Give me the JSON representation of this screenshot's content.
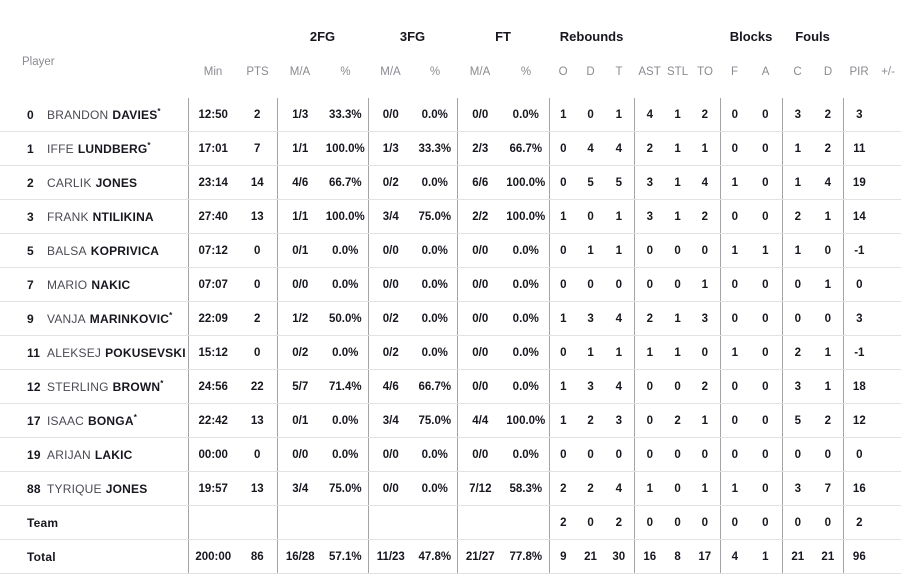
{
  "colors": {
    "text_dark": "#17171f",
    "text_gray": "#8a8a91",
    "first_name": "#4a4a53",
    "row_line": "#e2e2e4",
    "divider": "#a3a3a8",
    "background": "#ffffff"
  },
  "table": {
    "groups": [
      {
        "label": "",
        "span": 1
      },
      {
        "label": "",
        "span": 2
      },
      {
        "label": "2FG",
        "span": 2
      },
      {
        "label": "3FG",
        "span": 2
      },
      {
        "label": "FT",
        "span": 2
      },
      {
        "label": "Rebounds",
        "span": 3
      },
      {
        "label": "",
        "span": 3
      },
      {
        "label": "Blocks",
        "span": 2
      },
      {
        "label": "Fouls",
        "span": 2
      },
      {
        "label": "",
        "span": 2
      }
    ],
    "columns": [
      "Player",
      "Min",
      "PTS",
      "M/A",
      "%",
      "M/A",
      "%",
      "M/A",
      "%",
      "O",
      "D",
      "T",
      "AST",
      "STL",
      "TO",
      "F",
      "A",
      "C",
      "D",
      "PIR",
      "+/-"
    ],
    "stat_keys": [
      "min",
      "pts",
      "2fg-ma",
      "2fg-pct",
      "3fg-ma",
      "3fg-pct",
      "ft-ma",
      "ft-pct",
      "reb-o",
      "reb-d",
      "reb-t",
      "ast",
      "stl",
      "to",
      "blk-f",
      "blk-a",
      "foul-c",
      "foul-d",
      "pir",
      "plus-minus"
    ],
    "players": [
      {
        "number": "0",
        "first": "BRANDON",
        "last": "DAVIES",
        "starter": true,
        "stats": [
          "12:50",
          "2",
          "1/3",
          "33.3%",
          "0/0",
          "0.0%",
          "0/0",
          "0.0%",
          "1",
          "0",
          "1",
          "4",
          "1",
          "2",
          "0",
          "0",
          "3",
          "2",
          "3",
          ""
        ]
      },
      {
        "number": "1",
        "first": "IFFE",
        "last": "LUNDBERG",
        "starter": true,
        "stats": [
          "17:01",
          "7",
          "1/1",
          "100.0%",
          "1/3",
          "33.3%",
          "2/3",
          "66.7%",
          "0",
          "4",
          "4",
          "2",
          "1",
          "1",
          "0",
          "0",
          "1",
          "2",
          "11",
          ""
        ]
      },
      {
        "number": "2",
        "first": "CARLIK",
        "last": "JONES",
        "starter": false,
        "stats": [
          "23:14",
          "14",
          "4/6",
          "66.7%",
          "0/2",
          "0.0%",
          "6/6",
          "100.0%",
          "0",
          "5",
          "5",
          "3",
          "1",
          "4",
          "1",
          "0",
          "1",
          "4",
          "19",
          ""
        ]
      },
      {
        "number": "3",
        "first": "FRANK",
        "last": "NTILIKINA",
        "starter": false,
        "stats": [
          "27:40",
          "13",
          "1/1",
          "100.0%",
          "3/4",
          "75.0%",
          "2/2",
          "100.0%",
          "1",
          "0",
          "1",
          "3",
          "1",
          "2",
          "0",
          "0",
          "2",
          "1",
          "14",
          ""
        ]
      },
      {
        "number": "5",
        "first": "BALSA",
        "last": "KOPRIVICA",
        "starter": false,
        "stats": [
          "07:12",
          "0",
          "0/1",
          "0.0%",
          "0/0",
          "0.0%",
          "0/0",
          "0.0%",
          "0",
          "1",
          "1",
          "0",
          "0",
          "0",
          "1",
          "1",
          "1",
          "0",
          "-1",
          ""
        ]
      },
      {
        "number": "7",
        "first": "MARIO",
        "last": "NAKIC",
        "starter": false,
        "stats": [
          "07:07",
          "0",
          "0/0",
          "0.0%",
          "0/0",
          "0.0%",
          "0/0",
          "0.0%",
          "0",
          "0",
          "0",
          "0",
          "0",
          "1",
          "0",
          "0",
          "0",
          "1",
          "0",
          ""
        ]
      },
      {
        "number": "9",
        "first": "VANJA",
        "last": "MARINKOVIC",
        "starter": true,
        "stats": [
          "22:09",
          "2",
          "1/2",
          "50.0%",
          "0/2",
          "0.0%",
          "0/0",
          "0.0%",
          "1",
          "3",
          "4",
          "2",
          "1",
          "3",
          "0",
          "0",
          "0",
          "0",
          "3",
          ""
        ]
      },
      {
        "number": "11",
        "first": "ALEKSEJ",
        "last": "POKUSEVSKI",
        "starter": false,
        "stats": [
          "15:12",
          "0",
          "0/2",
          "0.0%",
          "0/2",
          "0.0%",
          "0/0",
          "0.0%",
          "0",
          "1",
          "1",
          "1",
          "1",
          "0",
          "1",
          "0",
          "2",
          "1",
          "-1",
          ""
        ]
      },
      {
        "number": "12",
        "first": "STERLING",
        "last": "BROWN",
        "starter": true,
        "stats": [
          "24:56",
          "22",
          "5/7",
          "71.4%",
          "4/6",
          "66.7%",
          "0/0",
          "0.0%",
          "1",
          "3",
          "4",
          "0",
          "0",
          "2",
          "0",
          "0",
          "3",
          "1",
          "18",
          ""
        ]
      },
      {
        "number": "17",
        "first": "ISAAC",
        "last": "BONGA",
        "starter": true,
        "stats": [
          "22:42",
          "13",
          "0/1",
          "0.0%",
          "3/4",
          "75.0%",
          "4/4",
          "100.0%",
          "1",
          "2",
          "3",
          "0",
          "2",
          "1",
          "0",
          "0",
          "5",
          "2",
          "12",
          ""
        ]
      },
      {
        "number": "19",
        "first": "ARIJAN",
        "last": "LAKIC",
        "starter": false,
        "stats": [
          "00:00",
          "0",
          "0/0",
          "0.0%",
          "0/0",
          "0.0%",
          "0/0",
          "0.0%",
          "0",
          "0",
          "0",
          "0",
          "0",
          "0",
          "0",
          "0",
          "0",
          "0",
          "0",
          ""
        ]
      },
      {
        "number": "88",
        "first": "TYRIQUE",
        "last": "JONES",
        "starter": false,
        "stats": [
          "19:57",
          "13",
          "3/4",
          "75.0%",
          "0/0",
          "0.0%",
          "7/12",
          "58.3%",
          "2",
          "2",
          "4",
          "1",
          "0",
          "1",
          "1",
          "0",
          "3",
          "7",
          "16",
          ""
        ]
      }
    ],
    "totals": [
      {
        "label": "Team",
        "stats": [
          "",
          "",
          "",
          "",
          "",
          "",
          "",
          "",
          "2",
          "0",
          "2",
          "0",
          "0",
          "0",
          "0",
          "0",
          "0",
          "0",
          "2",
          ""
        ]
      },
      {
        "label": "Total",
        "stats": [
          "200:00",
          "86",
          "16/28",
          "57.1%",
          "11/23",
          "47.8%",
          "21/27",
          "77.8%",
          "9",
          "21",
          "30",
          "16",
          "8",
          "17",
          "4",
          "1",
          "21",
          "21",
          "96",
          ""
        ]
      }
    ]
  }
}
